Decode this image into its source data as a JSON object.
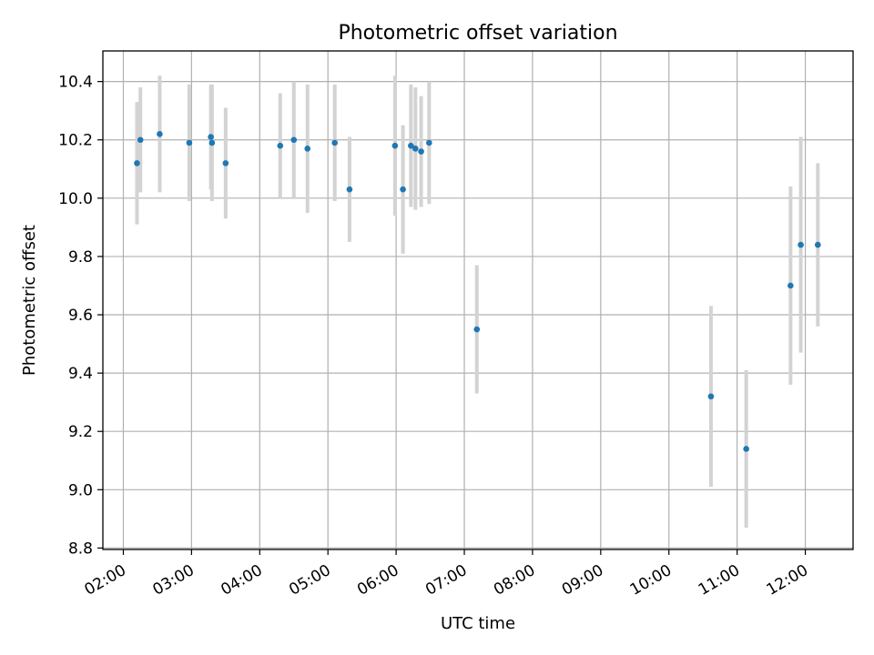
{
  "chart_data": {
    "type": "scatter",
    "title": "Photometric offset variation",
    "xlabel": "UTC time",
    "ylabel": "Photometric offset",
    "x_ticks": [
      "02:00",
      "03:00",
      "04:00",
      "05:00",
      "06:00",
      "07:00",
      "08:00",
      "09:00",
      "10:00",
      "11:00",
      "12:00"
    ],
    "y_ticks": [
      "8.8",
      "9.0",
      "9.2",
      "9.4",
      "9.6",
      "9.8",
      "10.0",
      "10.2",
      "10.4"
    ],
    "xlim": [
      "01:42",
      "12:42"
    ],
    "ylim": [
      8.795,
      10.505
    ],
    "grid": true,
    "colors": {
      "point": "#1f77b4",
      "error_bar": "#d3d3d3",
      "grid": "#b0b0b0",
      "axis": "#000000"
    },
    "points": [
      {
        "x": "02:12",
        "y": 10.12,
        "y_err": 0.21
      },
      {
        "x": "02:15",
        "y": 10.2,
        "y_err": 0.18
      },
      {
        "x": "02:32",
        "y": 10.22,
        "y_err": 0.2
      },
      {
        "x": "02:58",
        "y": 10.19,
        "y_err": 0.2
      },
      {
        "x": "03:17",
        "y": 10.21,
        "y_err": 0.18
      },
      {
        "x": "03:18",
        "y": 10.19,
        "y_err": 0.2
      },
      {
        "x": "03:30",
        "y": 10.12,
        "y_err": 0.19
      },
      {
        "x": "04:18",
        "y": 10.18,
        "y_err": 0.18
      },
      {
        "x": "04:30",
        "y": 10.2,
        "y_err": 0.2
      },
      {
        "x": "04:42",
        "y": 10.17,
        "y_err": 0.22
      },
      {
        "x": "05:06",
        "y": 10.19,
        "y_err": 0.2
      },
      {
        "x": "05:19",
        "y": 10.03,
        "y_err": 0.18
      },
      {
        "x": "05:59",
        "y": 10.18,
        "y_err": 0.24
      },
      {
        "x": "06:06",
        "y": 10.03,
        "y_err": 0.22
      },
      {
        "x": "06:13",
        "y": 10.18,
        "y_err": 0.21
      },
      {
        "x": "06:17",
        "y": 10.17,
        "y_err": 0.21
      },
      {
        "x": "06:22",
        "y": 10.16,
        "y_err": 0.19
      },
      {
        "x": "06:29",
        "y": 10.19,
        "y_err": 0.21
      },
      {
        "x": "07:11",
        "y": 9.55,
        "y_err": 0.22
      },
      {
        "x": "10:37",
        "y": 9.32,
        "y_err": 0.31
      },
      {
        "x": "11:08",
        "y": 9.14,
        "y_err": 0.27
      },
      {
        "x": "11:47",
        "y": 9.7,
        "y_err": 0.34
      },
      {
        "x": "11:56",
        "y": 9.84,
        "y_err": 0.37
      },
      {
        "x": "12:11",
        "y": 9.84,
        "y_err": 0.28
      }
    ]
  }
}
